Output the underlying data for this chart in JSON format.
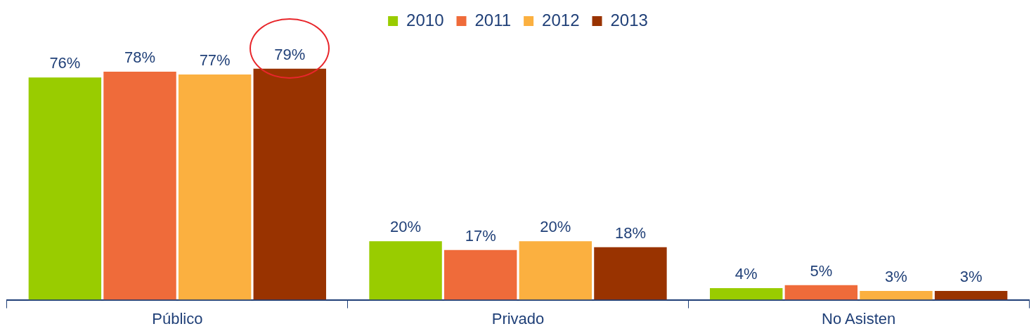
{
  "chart_data": {
    "type": "bar",
    "categories": [
      "Público",
      "Privado",
      "No Asisten"
    ],
    "legend": "top",
    "series": [
      {
        "name": "2010",
        "color": "#99cc00",
        "values": [
          76,
          20,
          4
        ],
        "value_labels": [
          "76%",
          "20%",
          "4%"
        ]
      },
      {
        "name": "2011",
        "color": "#ef6b3a",
        "values": [
          78,
          17,
          5
        ],
        "value_labels": [
          "78%",
          "17%",
          "5%"
        ]
      },
      {
        "name": "2012",
        "color": "#fbb040",
        "values": [
          77,
          20,
          3
        ],
        "value_labels": [
          "77%",
          "20%",
          "3%"
        ]
      },
      {
        "name": "2013",
        "color": "#993300",
        "values": [
          79,
          18,
          3
        ],
        "value_labels": [
          "79%",
          "18%",
          "3%"
        ]
      }
    ]
  }
}
